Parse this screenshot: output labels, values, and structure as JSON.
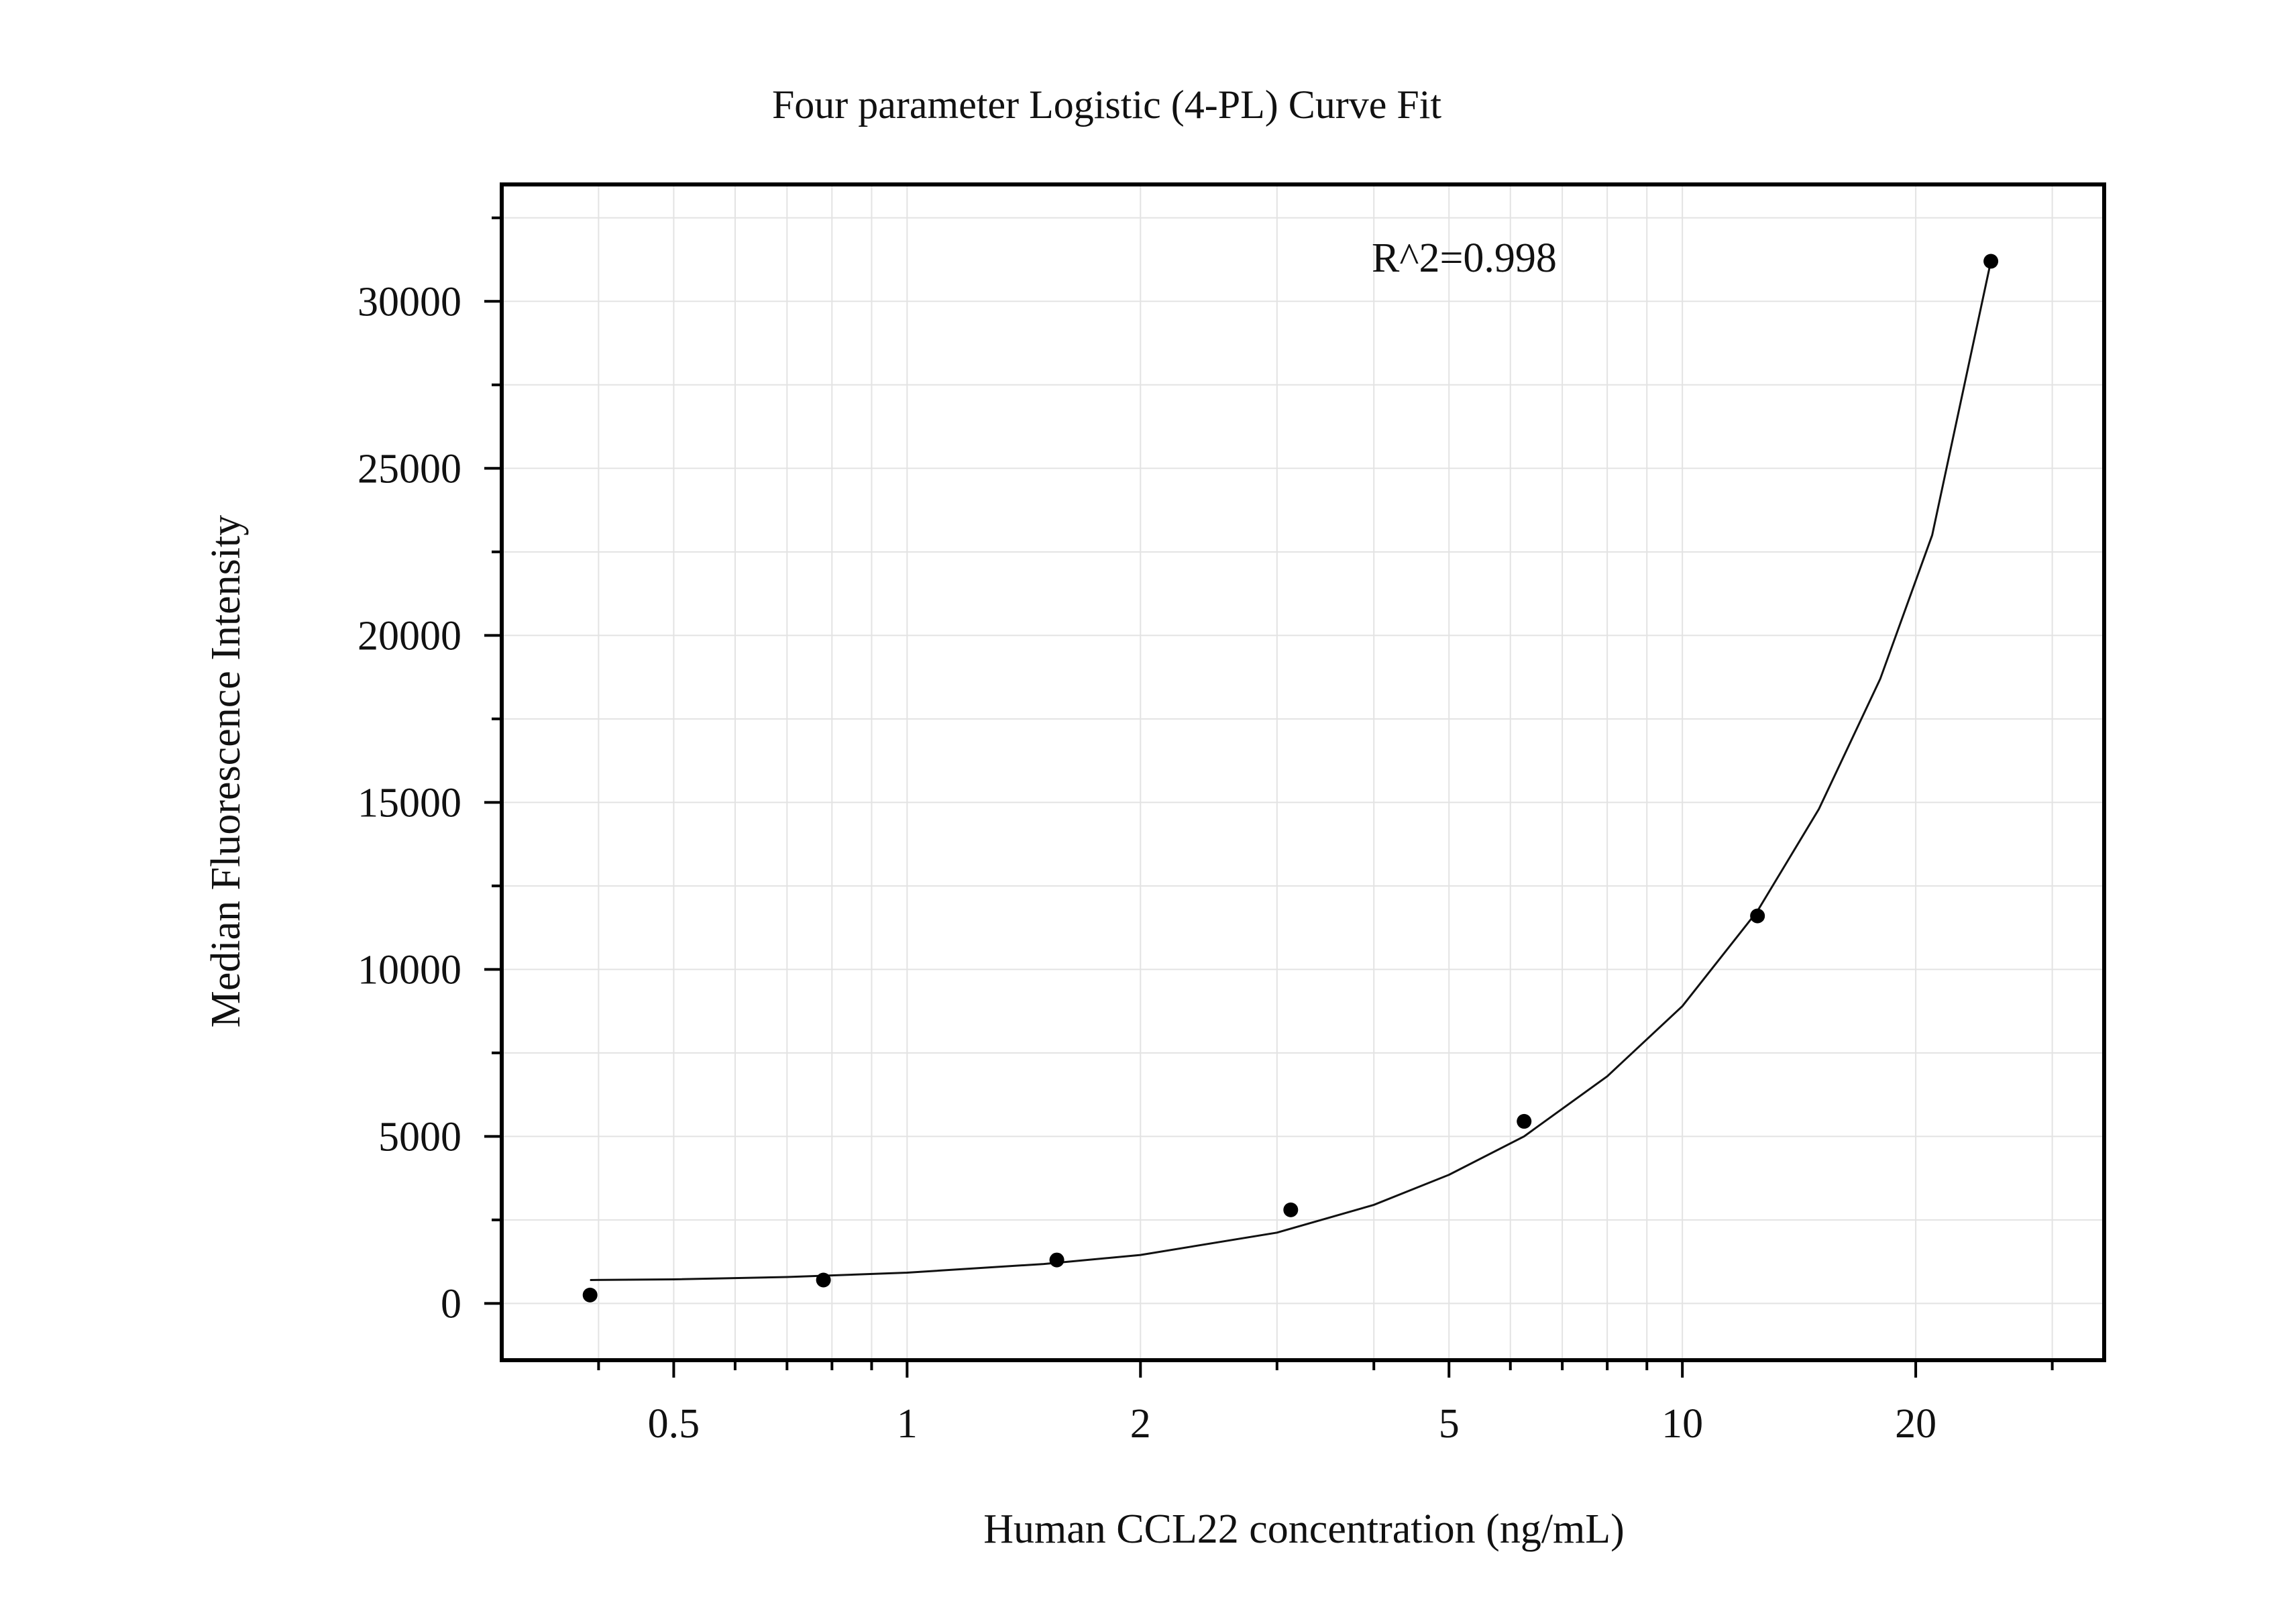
{
  "chart_data": {
    "type": "scatter",
    "title": "Four parameter Logistic (4-PL) Curve Fit",
    "xlabel": "Human CCL22 concentration (ng/mL)",
    "ylabel": "Median Fluorescence Intensity",
    "annotation": "R^2=0.998",
    "x_scale": "log",
    "xlim": [
      0.3,
      35
    ],
    "ylim": [
      -1700,
      33500
    ],
    "x_ticks": [
      {
        "value": 0.5,
        "label": "0.5"
      },
      {
        "value": 1,
        "label": "1"
      },
      {
        "value": 2,
        "label": "2"
      },
      {
        "value": 5,
        "label": "5"
      },
      {
        "value": 10,
        "label": "10"
      },
      {
        "value": 20,
        "label": "20"
      }
    ],
    "y_ticks": [
      {
        "value": 0,
        "label": "0"
      },
      {
        "value": 5000,
        "label": "5000"
      },
      {
        "value": 10000,
        "label": "10000"
      },
      {
        "value": 15000,
        "label": "15000"
      },
      {
        "value": 20000,
        "label": "20000"
      },
      {
        "value": 25000,
        "label": "25000"
      },
      {
        "value": 30000,
        "label": "30000"
      }
    ],
    "grid": true,
    "series": [
      {
        "kind": "points",
        "x": [
          0.39,
          0.78,
          1.56,
          3.125,
          6.25,
          12.5,
          25
        ],
        "y": [
          250,
          700,
          1300,
          2800,
          5450,
          11600,
          31200
        ]
      },
      {
        "kind": "fit",
        "x": [
          0.39,
          0.5,
          0.7,
          1,
          1.5,
          2,
          3,
          4,
          5,
          6.25,
          8,
          10,
          12.5,
          15,
          18,
          21,
          25
        ],
        "y": [
          700,
          720,
          790,
          920,
          1180,
          1450,
          2120,
          2950,
          3850,
          5000,
          6800,
          8900,
          11750,
          14800,
          18700,
          23000,
          31200
        ]
      }
    ],
    "colors": {
      "line": "#111111",
      "points": "#000000",
      "grid": "#e3e3e3",
      "frame": "#000000"
    }
  }
}
